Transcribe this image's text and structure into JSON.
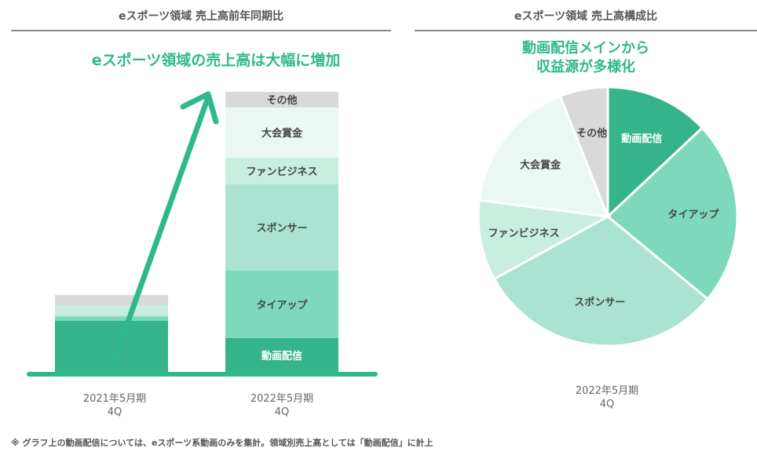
{
  "left_panel": {
    "title": "eスポーツ領域 売上高前年同期比",
    "headline": "eスポーツ領域の売上高は大幅に増加"
  },
  "right_panel": {
    "title": "eスポーツ領域 売上高構成比",
    "headline_line1": "動画配信メインから",
    "headline_line2": "収益源が多様化"
  },
  "footnote": "※ グラフ上の動画配信については、eスポーツ系動画のみを集計。領域別売上高としては「動画配信」に計上",
  "colors": {
    "動画配信": "#35b48c",
    "タイアップ": "#7dd8bc",
    "スポンサー": "#abe3d2",
    "ファンビジネス": "#c8eee0",
    "大会賞金": "#ebf7f2",
    "その他": "#d9d9d9",
    "accent": "#2fb88e",
    "baseline": "#2fb88e"
  },
  "chart_data": [
    {
      "type": "bar",
      "stacked": true,
      "categories": [
        "2021年5月期\n4Q",
        "2022年5月期\n4Q"
      ],
      "category_lines": [
        [
          "2021年5月期",
          "4Q"
        ],
        [
          "2022年5月期",
          "4Q"
        ]
      ],
      "series": [
        {
          "name": "動画配信",
          "values": [
            66,
            44
          ]
        },
        {
          "name": "タイアップ",
          "values": [
            5,
            86
          ]
        },
        {
          "name": "スポンサー",
          "values": [
            2,
            110
          ]
        },
        {
          "name": "ファンビジネス",
          "values": [
            13,
            34
          ]
        },
        {
          "name": "大会賞金",
          "values": [
            0,
            64
          ]
        },
        {
          "name": "その他",
          "values": [
            13,
            20
          ]
        }
      ]
    },
    {
      "type": "pie",
      "category": "2022年5月期\n4Q",
      "category_lines": [
        "2022年5月期",
        "4Q"
      ],
      "slices": [
        {
          "label": "動画配信",
          "value": 13
        },
        {
          "label": "タイアップ",
          "value": 23
        },
        {
          "label": "スポンサー",
          "value": 31
        },
        {
          "label": "ファンビジネス",
          "value": 10
        },
        {
          "label": "大会賞金",
          "value": 17
        },
        {
          "label": "その他",
          "value": 6
        }
      ]
    }
  ]
}
